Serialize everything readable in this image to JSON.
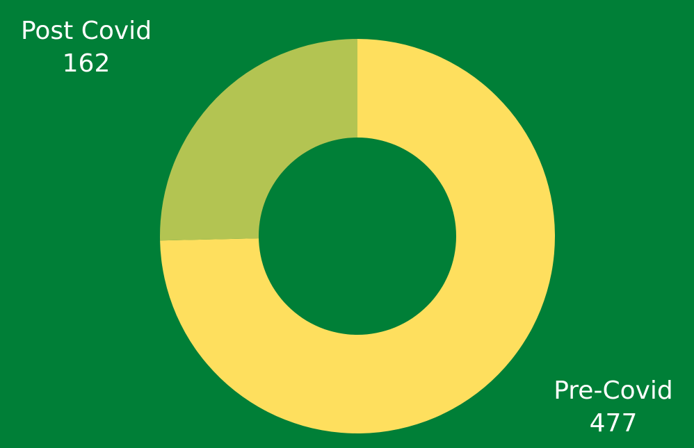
{
  "chart_data": {
    "type": "pie",
    "variant": "donut",
    "slices": [
      {
        "label": "Pre-Covid",
        "value": 477,
        "color": "#FEDF5E"
      },
      {
        "label": "Post Covid",
        "value": 162,
        "color": "#B3C452"
      }
    ],
    "background_color": "#007F37",
    "label_color": "#FFFFFF"
  }
}
